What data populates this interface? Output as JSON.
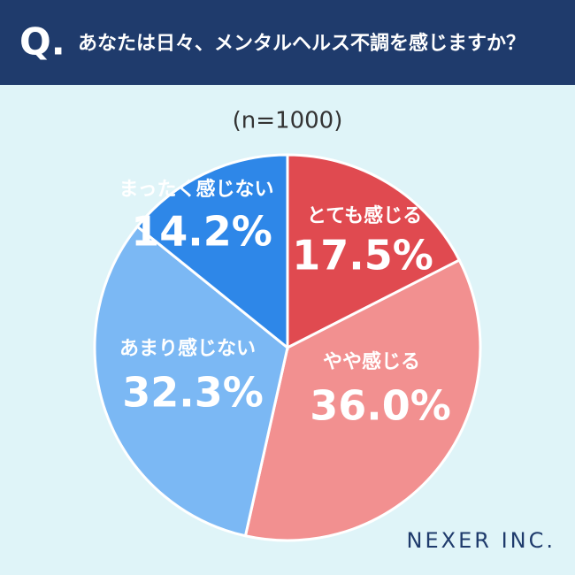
{
  "question_label": "Q.",
  "brand": "NEXER INC.",
  "chart_data": {
    "type": "pie",
    "title": "あなたは日々、メンタルヘルス不調を感じますか？",
    "subtitle": "(n=1000)",
    "categories": [
      "とても感じる",
      "やや感じる",
      "あまり感じない",
      "まったく感じない"
    ],
    "values": [
      17.5,
      36.0,
      32.3,
      14.2
    ],
    "value_labels": [
      "17.5%",
      "36.0%",
      "32.3%",
      "14.2%"
    ],
    "colors": [
      "#e04a50",
      "#f29090",
      "#7bb8f4",
      "#2e87e8"
    ]
  }
}
